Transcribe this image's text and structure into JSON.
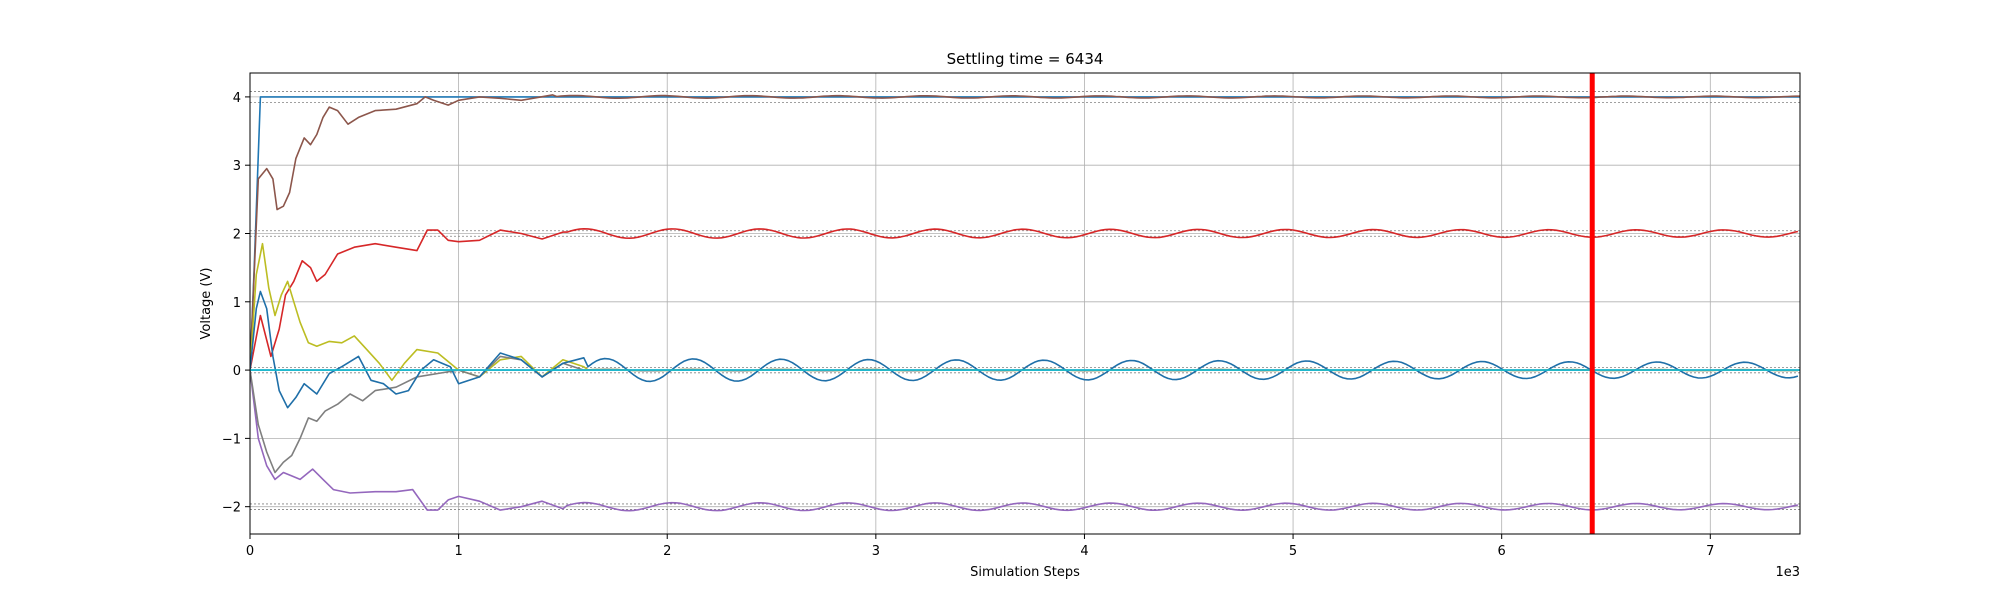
{
  "chart_data": {
    "type": "line",
    "title": "Settling time = 6434",
    "xlabel": "Simulation Steps",
    "ylabel": "Voltage (V)",
    "x_offset_label": "1e3",
    "xlim": [
      0,
      7430
    ],
    "ylim": [
      -2.4,
      4.35
    ],
    "xticks": [
      0,
      1000,
      2000,
      3000,
      4000,
      5000,
      6000,
      7000
    ],
    "xtick_labels": [
      "0",
      "1",
      "2",
      "3",
      "4",
      "5",
      "6",
      "7"
    ],
    "yticks": [
      -2,
      -1,
      0,
      1,
      2,
      3,
      4
    ],
    "ytick_labels": [
      "−2",
      "−1",
      "0",
      "1",
      "2",
      "3",
      "4"
    ],
    "grid": true,
    "settling_time": 6434,
    "settling_color": "#ff0000",
    "tolerance_lines": [
      4.08,
      3.92,
      2.04,
      1.96,
      0.04,
      -0.04,
      -1.96,
      -2.04
    ],
    "series": [
      {
        "color": "#1f77b4",
        "points": [
          [
            0,
            0
          ],
          [
            20,
            1.5
          ],
          [
            50,
            4.0
          ],
          [
            7430,
            4.0
          ]
        ],
        "flat": true
      },
      {
        "color": "#1f77b4",
        "points": [
          [
            0,
            0
          ],
          [
            7430,
            0
          ]
        ],
        "flat": true
      },
      {
        "color": "#8c564b",
        "target": 4.0,
        "points": [
          [
            0,
            0
          ],
          [
            40,
            2.8
          ],
          [
            80,
            2.95
          ],
          [
            110,
            2.8
          ],
          [
            130,
            2.35
          ],
          [
            160,
            2.4
          ],
          [
            190,
            2.6
          ],
          [
            220,
            3.1
          ],
          [
            260,
            3.4
          ],
          [
            290,
            3.3
          ],
          [
            320,
            3.45
          ],
          [
            350,
            3.7
          ],
          [
            380,
            3.85
          ],
          [
            420,
            3.8
          ],
          [
            470,
            3.6
          ],
          [
            520,
            3.7
          ],
          [
            600,
            3.8
          ],
          [
            700,
            3.82
          ],
          [
            800,
            3.9
          ],
          [
            840,
            4.0
          ],
          [
            880,
            3.95
          ],
          [
            950,
            3.88
          ],
          [
            1000,
            3.95
          ],
          [
            1100,
            4.0
          ],
          [
            1200,
            3.98
          ],
          [
            1300,
            3.95
          ],
          [
            1450,
            4.03
          ]
        ],
        "osc_start": 1450,
        "osc_amp": 0.02,
        "osc_period": 420,
        "osc_decay": 0.0001
      },
      {
        "color": "#d62728",
        "target": 2.0,
        "points": [
          [
            0,
            0
          ],
          [
            50,
            0.8
          ],
          [
            100,
            0.2
          ],
          [
            140,
            0.6
          ],
          [
            170,
            1.1
          ],
          [
            210,
            1.3
          ],
          [
            250,
            1.6
          ],
          [
            290,
            1.5
          ],
          [
            320,
            1.3
          ],
          [
            360,
            1.4
          ],
          [
            420,
            1.7
          ],
          [
            500,
            1.8
          ],
          [
            600,
            1.85
          ],
          [
            700,
            1.8
          ],
          [
            800,
            1.75
          ],
          [
            850,
            2.05
          ],
          [
            900,
            2.05
          ],
          [
            950,
            1.9
          ],
          [
            1000,
            1.88
          ],
          [
            1100,
            1.9
          ],
          [
            1200,
            2.05
          ],
          [
            1300,
            2.0
          ],
          [
            1400,
            1.92
          ],
          [
            1500,
            2.02
          ]
        ],
        "osc_start": 1500,
        "osc_amp": 0.07,
        "osc_period": 420,
        "osc_decay": 5e-05
      },
      {
        "color": "#9467bd",
        "target": -2.0,
        "points": [
          [
            0,
            0
          ],
          [
            40,
            -1.0
          ],
          [
            80,
            -1.4
          ],
          [
            120,
            -1.6
          ],
          [
            160,
            -1.5
          ],
          [
            200,
            -1.55
          ],
          [
            240,
            -1.6
          ],
          [
            300,
            -1.45
          ],
          [
            350,
            -1.6
          ],
          [
            400,
            -1.75
          ],
          [
            480,
            -1.8
          ],
          [
            600,
            -1.78
          ],
          [
            700,
            -1.78
          ],
          [
            780,
            -1.75
          ],
          [
            850,
            -2.05
          ],
          [
            900,
            -2.05
          ],
          [
            950,
            -1.9
          ],
          [
            1000,
            -1.85
          ],
          [
            1100,
            -1.92
          ],
          [
            1200,
            -2.05
          ],
          [
            1300,
            -2.0
          ],
          [
            1400,
            -1.92
          ],
          [
            1500,
            -2.03
          ]
        ],
        "osc_start": 1500,
        "osc_amp": 0.06,
        "osc_period": 420,
        "osc_decay": 5e-05
      },
      {
        "color": "#bcbd22",
        "target": 0.0,
        "points": [
          [
            0,
            0
          ],
          [
            30,
            1.4
          ],
          [
            60,
            1.85
          ],
          [
            90,
            1.2
          ],
          [
            120,
            0.8
          ],
          [
            150,
            1.1
          ],
          [
            180,
            1.3
          ],
          [
            210,
            1.0
          ],
          [
            240,
            0.7
          ],
          [
            280,
            0.4
          ],
          [
            320,
            0.35
          ],
          [
            380,
            0.42
          ],
          [
            440,
            0.4
          ],
          [
            500,
            0.5
          ],
          [
            560,
            0.3
          ],
          [
            620,
            0.1
          ],
          [
            680,
            -0.15
          ],
          [
            740,
            0.1
          ],
          [
            800,
            0.3
          ],
          [
            900,
            0.25
          ],
          [
            1000,
            0.0
          ],
          [
            1100,
            -0.1
          ],
          [
            1200,
            0.15
          ],
          [
            1300,
            0.2
          ],
          [
            1400,
            -0.1
          ],
          [
            1500,
            0.15
          ],
          [
            1600,
            0.05
          ]
        ],
        "osc_start": 1600,
        "osc_amp": 0.01,
        "osc_period": 420,
        "osc_decay": 0.0001
      },
      {
        "color": "#7f7f7f",
        "target": 0.0,
        "points": [
          [
            0,
            0
          ],
          [
            40,
            -0.8
          ],
          [
            80,
            -1.2
          ],
          [
            120,
            -1.5
          ],
          [
            160,
            -1.35
          ],
          [
            200,
            -1.25
          ],
          [
            240,
            -1.0
          ],
          [
            280,
            -0.7
          ],
          [
            320,
            -0.75
          ],
          [
            360,
            -0.6
          ],
          [
            420,
            -0.5
          ],
          [
            480,
            -0.35
          ],
          [
            540,
            -0.45
          ],
          [
            600,
            -0.3
          ],
          [
            700,
            -0.25
          ],
          [
            800,
            -0.1
          ],
          [
            900,
            -0.05
          ],
          [
            1000,
            0.0
          ],
          [
            1100,
            -0.1
          ],
          [
            1200,
            0.2
          ],
          [
            1300,
            0.15
          ],
          [
            1400,
            -0.1
          ],
          [
            1500,
            0.1
          ],
          [
            1600,
            0.0
          ]
        ],
        "osc_start": 1600,
        "osc_amp": 0.01,
        "osc_period": 420,
        "osc_decay": 0.0001
      },
      {
        "color": "#1f6fa8",
        "target": 0.0,
        "points": [
          [
            0,
            0
          ],
          [
            30,
            0.9
          ],
          [
            50,
            1.15
          ],
          [
            80,
            0.9
          ],
          [
            110,
            0.2
          ],
          [
            140,
            -0.3
          ],
          [
            180,
            -0.55
          ],
          [
            220,
            -0.4
          ],
          [
            260,
            -0.2
          ],
          [
            320,
            -0.35
          ],
          [
            380,
            -0.05
          ],
          [
            440,
            0.05
          ],
          [
            520,
            0.2
          ],
          [
            580,
            -0.15
          ],
          [
            640,
            -0.2
          ],
          [
            700,
            -0.35
          ],
          [
            760,
            -0.3
          ],
          [
            820,
            0.0
          ],
          [
            880,
            0.15
          ],
          [
            960,
            0.05
          ],
          [
            1000,
            -0.2
          ],
          [
            1100,
            -0.1
          ],
          [
            1200,
            0.25
          ],
          [
            1300,
            0.15
          ],
          [
            1400,
            -0.1
          ],
          [
            1500,
            0.1
          ],
          [
            1600,
            0.18
          ]
        ],
        "osc_start": 1600,
        "osc_amp": 0.17,
        "osc_period": 420,
        "osc_decay": 7e-05
      },
      {
        "color": "#17becf",
        "points": [
          [
            0,
            0
          ],
          [
            7430,
            0
          ]
        ],
        "flat": true
      }
    ]
  }
}
